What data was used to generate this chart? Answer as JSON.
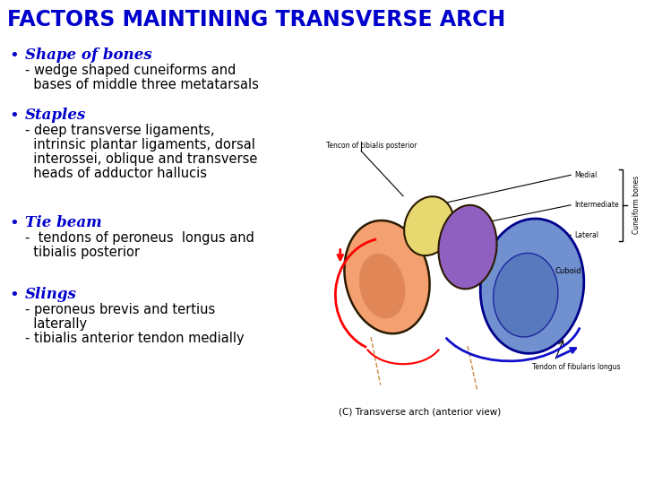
{
  "title": "FACTORS MAINTINING TRANSVERSE ARCH",
  "title_color": "#0000CC",
  "title_fontsize": 17,
  "background_color": "#ffffff",
  "bullet_color": "#0000CC",
  "text_color": "#000000",
  "bullets": [
    {
      "header": "Shape of bones",
      "subtext": "- wedge shaped cuneiforms and\n  bases of middle three metatarsals"
    },
    {
      "header": "Staples",
      "subtext": "- deep transverse ligaments,\n  intrinsic plantar ligaments, dorsal\n  interossei, oblique and transverse\n  heads of adductor hallucis"
    },
    {
      "header": "Tie beam",
      "subtext": "-  tendons of peroneus  longus and\n  tibialis posterior"
    },
    {
      "header": "Slings",
      "subtext": "- peroneus brevis and tertius\n  laterally\n- tibialis anterior tendon medially"
    }
  ],
  "diagram_caption": "(C) Transverse arch (anterior view)",
  "bone_colors": {
    "medial": "#F4A070",
    "yellow": "#E8D870",
    "purple": "#9060C0",
    "cuboid": "#7090D0"
  },
  "diagram_label_tendon_post": "Tencon of tibialis posterior",
  "diagram_label_medial": "Medial",
  "diagram_label_intermediate": "Intermediate",
  "diagram_label_lateral": "Lateral",
  "diagram_label_cuneiform": "Cuneiform bones",
  "diagram_label_cuboid": "Cuboid",
  "diagram_label_tendon_fib": "Tendon of fibularis longus"
}
